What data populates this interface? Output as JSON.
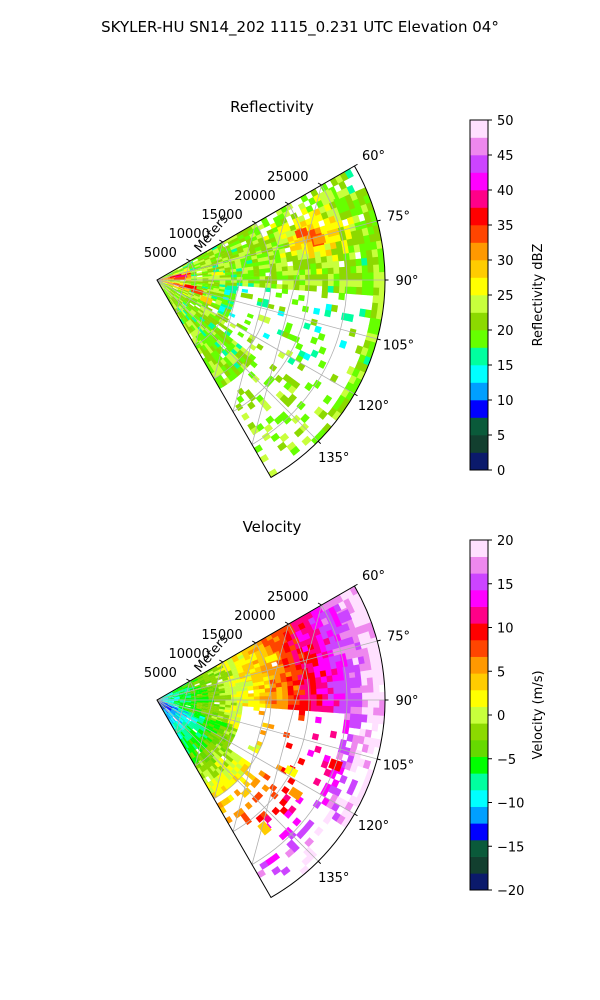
{
  "figure_title": "SKYLER-HU  SN14_202  1115_0.231 UTC Elevation 04°",
  "chart_data": [
    {
      "type": "polar-sector-radar",
      "title": "Reflectivity",
      "radial_label": "Meters",
      "radial_ticks": [
        "5000",
        "10000",
        "15000",
        "20000",
        "25000"
      ],
      "radial_tick_values": [
        5000,
        10000,
        15000,
        20000,
        25000
      ],
      "radial_max": 30000,
      "angle_range_deg": [
        60,
        150
      ],
      "angle_tick_values": [
        60,
        75,
        90,
        105,
        120,
        135
      ],
      "angle_ticks": [
        "60°",
        "75°",
        "90°",
        "105°",
        "120°",
        "135°"
      ],
      "grid": true,
      "colorbar": {
        "label": "Reflectivity dBZ",
        "range": [
          0,
          50
        ],
        "tick_values": [
          0,
          5,
          10,
          15,
          20,
          25,
          30,
          35,
          40,
          45,
          50
        ],
        "tick_labels": [
          "0",
          "5",
          "10",
          "15",
          "20",
          "25",
          "30",
          "35",
          "40",
          "45",
          "50"
        ],
        "colors": [
          "#0b1a6b",
          "#123f2f",
          "#0a5a3a",
          "#0000ff",
          "#009fff",
          "#00ffff",
          "#00ff9f",
          "#66ff00",
          "#8cd900",
          "#c8ff3c",
          "#ffff00",
          "#ffcc00",
          "#ff9900",
          "#ff4500",
          "#ff0000",
          "#ff0088",
          "#ff00ff",
          "#cc44ff",
          "#ee88ee",
          "#ffe0ff"
        ]
      },
      "field_description": "Mostly 18–26 dBZ (green/yellow) with embedded 30–38 dBZ cores (orange/red) near the radar and around 75° at 20 km; data gap east of 95°.",
      "sample_cells": [
        {
          "angle": 78,
          "range": 2500,
          "value": 36
        },
        {
          "angle": 82,
          "range": 3200,
          "value": 38
        },
        {
          "angle": 86,
          "range": 3000,
          "value": 34
        },
        {
          "angle": 102,
          "range": 4500,
          "value": 36
        },
        {
          "angle": 106,
          "range": 5500,
          "value": 34
        },
        {
          "angle": 72,
          "range": 20000,
          "value": 33
        },
        {
          "angle": 76,
          "range": 22000,
          "value": 31
        },
        {
          "angle": 68,
          "range": 18000,
          "value": 27
        },
        {
          "angle": 90,
          "range": 15000,
          "value": 20
        },
        {
          "angle": 96,
          "range": 10000,
          "value": 16
        },
        {
          "angle": 100,
          "range": 12000,
          "value": 21
        },
        {
          "angle": 110,
          "range": 15000,
          "value": 23
        },
        {
          "angle": 120,
          "range": 10000,
          "value": 22
        },
        {
          "angle": 64,
          "range": 25000,
          "value": 24
        },
        {
          "angle": 84,
          "range": 8000,
          "value": 25
        },
        {
          "angle": 112,
          "range": 7000,
          "value": 28
        }
      ]
    },
    {
      "type": "polar-sector-radar",
      "title": "Velocity",
      "radial_label": "Meters",
      "radial_ticks": [
        "5000",
        "10000",
        "15000",
        "20000",
        "25000"
      ],
      "radial_tick_values": [
        5000,
        10000,
        15000,
        20000,
        25000
      ],
      "radial_max": 30000,
      "angle_range_deg": [
        60,
        150
      ],
      "angle_tick_values": [
        60,
        75,
        90,
        105,
        120,
        135
      ],
      "angle_ticks": [
        "60°",
        "75°",
        "90°",
        "105°",
        "120°",
        "135°"
      ],
      "grid": true,
      "colorbar": {
        "label": "Velocity (m/s)",
        "range": [
          -20,
          20
        ],
        "tick_values": [
          -20,
          -15,
          -10,
          -5,
          0,
          5,
          10,
          15,
          20
        ],
        "tick_labels": [
          "−20",
          "−15",
          "−10",
          "−5",
          "0",
          "5",
          "10",
          "15",
          "20"
        ],
        "colors": [
          "#0b1a6b",
          "#123f2f",
          "#0a5a3a",
          "#0000ff",
          "#009fff",
          "#00ffff",
          "#00ff9f",
          "#00ff00",
          "#66d900",
          "#8cd900",
          "#c8ff3c",
          "#ffff00",
          "#ffcc00",
          "#ff9900",
          "#ff4500",
          "#ff0000",
          "#ff0088",
          "#ff00ff",
          "#cc44ff",
          "#ee88ee",
          "#ffe0ff"
        ]
      },
      "field_description": "Velocity increases with range: about −10 m/s near the radar, 0 m/s near 12–17 km, 8–12 m/s near 22 km, 15+ m/s at the outer edge (60°–95°); data gap east of 95°.",
      "sample_cells": [
        {
          "angle": 90,
          "range": 2000,
          "value": -10
        },
        {
          "angle": 90,
          "range": 6000,
          "value": -5
        },
        {
          "angle": 110,
          "range": 9000,
          "value": -6
        },
        {
          "angle": 80,
          "range": 12000,
          "value": 0
        },
        {
          "angle": 70,
          "range": 16000,
          "value": 2
        },
        {
          "angle": 75,
          "range": 21000,
          "value": 9
        },
        {
          "angle": 85,
          "range": 26000,
          "value": 15
        },
        {
          "angle": 66,
          "range": 27000,
          "value": 16
        },
        {
          "angle": 118,
          "range": 20000,
          "value": 2
        },
        {
          "angle": 110,
          "range": 25000,
          "value": 9
        },
        {
          "angle": 124,
          "range": 22000,
          "value": 5
        },
        {
          "angle": 140,
          "range": 22000,
          "value": 3
        }
      ]
    }
  ]
}
